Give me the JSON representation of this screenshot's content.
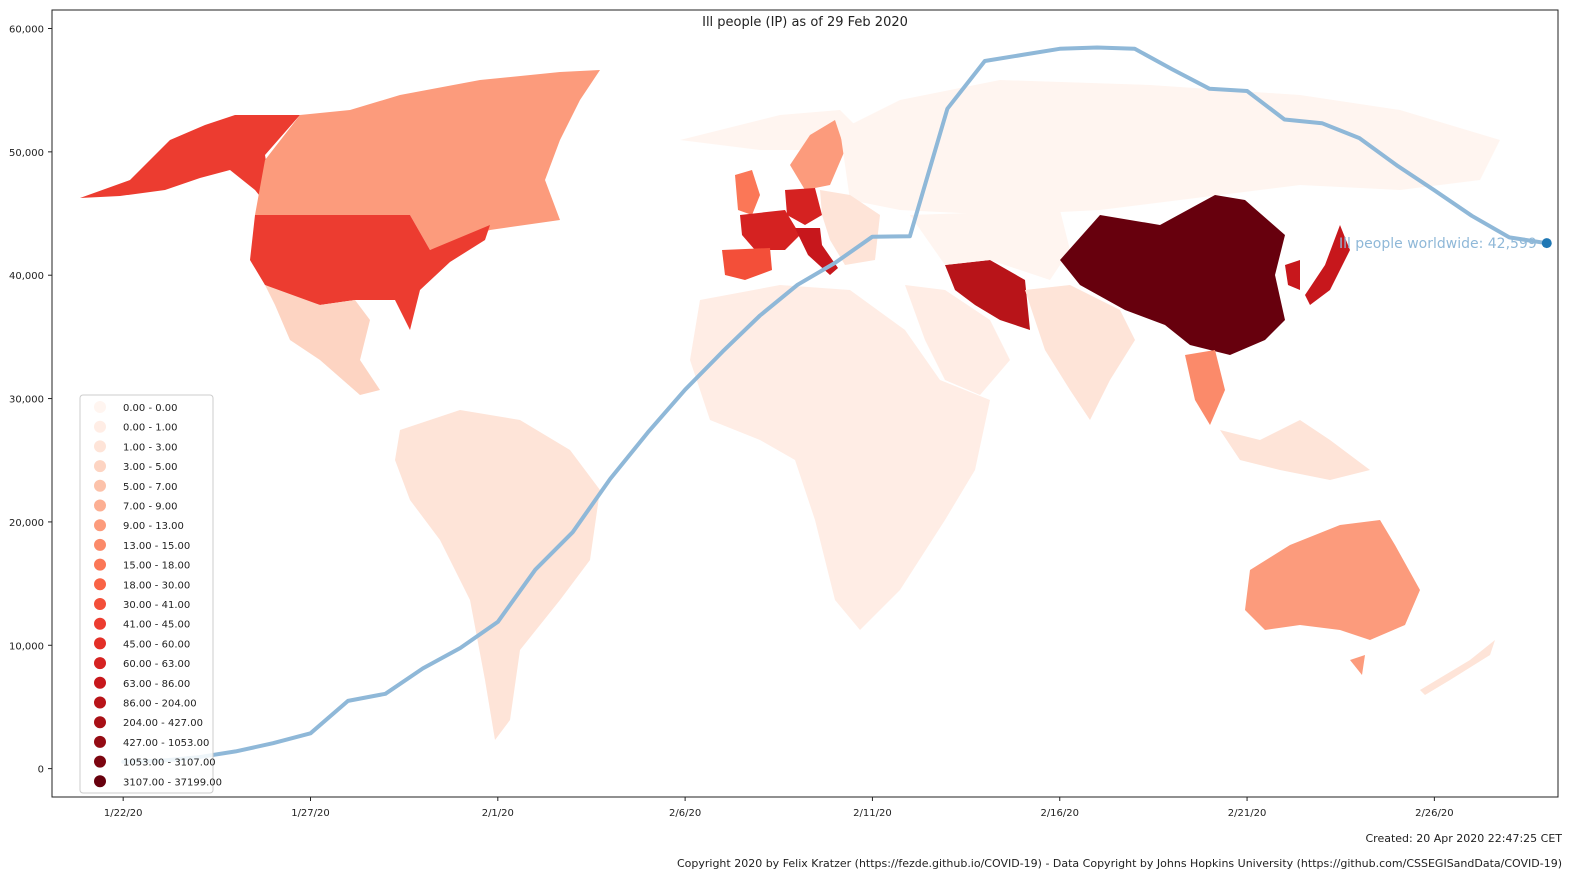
{
  "chart_data": {
    "type": "line",
    "title": "Ill people (IP) as of 29 Feb 2020",
    "xlabel": "",
    "ylabel": "",
    "ylim": [
      -2300,
      61500
    ],
    "xlim": [
      -1.9,
      38.3
    ],
    "x_ticks": [
      {
        "day": 0,
        "label": "1/22/20"
      },
      {
        "day": 5,
        "label": "1/27/20"
      },
      {
        "day": 10,
        "label": "2/1/20"
      },
      {
        "day": 15,
        "label": "2/6/20"
      },
      {
        "day": 20,
        "label": "2/11/20"
      },
      {
        "day": 25,
        "label": "2/16/20"
      },
      {
        "day": 30,
        "label": "2/21/20"
      },
      {
        "day": 35,
        "label": "2/26/20"
      }
    ],
    "y_ticks": [
      {
        "value": 0,
        "label": "0"
      },
      {
        "value": 10000,
        "label": "10,000"
      },
      {
        "value": 20000,
        "label": "20,000"
      },
      {
        "value": 30000,
        "label": "30,000"
      },
      {
        "value": 40000,
        "label": "40,000"
      },
      {
        "value": 50000,
        "label": "50,000"
      },
      {
        "value": 60000,
        "label": "60,000"
      }
    ],
    "series": [
      {
        "color": "#8fb8d8",
        "values": [
          548,
          640,
          918,
          1399,
          2062,
          2863,
          5494,
          6070,
          8124,
          9783,
          11891,
          16125,
          19163,
          23485,
          27237,
          30718,
          33811,
          36736,
          39219,
          40996,
          43124,
          43166,
          53500,
          57367,
          57861,
          58358,
          58460,
          58357,
          56702,
          55110,
          54934,
          52624,
          52320,
          51114,
          48903,
          46883,
          44819,
          43068,
          42599
        ]
      }
    ],
    "end_marker": {
      "day": 38,
      "value": 42599,
      "color": "#1f77b4"
    },
    "annotation": "Ill people worldwide: 42,599",
    "grid": false,
    "legend_position": "lower-left",
    "legend": {
      "entries": [
        {
          "label": "0.00 - 0.00",
          "color": "#fff5f0"
        },
        {
          "label": "0.00 - 1.00",
          "color": "#ffede5"
        },
        {
          "label": "1.00 - 3.00",
          "color": "#fee4d8"
        },
        {
          "label": "3.00 - 5.00",
          "color": "#fdd4c2"
        },
        {
          "label": "5.00 - 7.00",
          "color": "#fcc2aa"
        },
        {
          "label": "7.00 - 9.00",
          "color": "#fcaf93"
        },
        {
          "label": "9.00 - 13.00",
          "color": "#fc9b7c"
        },
        {
          "label": "13.00 - 15.00",
          "color": "#fb8a6a"
        },
        {
          "label": "15.00 - 18.00",
          "color": "#fb7757"
        },
        {
          "label": "18.00 - 30.00",
          "color": "#f96346"
        },
        {
          "label": "30.00 - 41.00",
          "color": "#f34f39"
        },
        {
          "label": "41.00 - 45.00",
          "color": "#ec3c30"
        },
        {
          "label": "45.00 - 60.00",
          "color": "#e32f27"
        },
        {
          "label": "60.00 - 63.00",
          "color": "#d52221"
        },
        {
          "label": "63.00 - 86.00",
          "color": "#c7171c"
        },
        {
          "label": "86.00 - 204.00",
          "color": "#b81419"
        },
        {
          "label": "204.00 - 427.00",
          "color": "#a81016"
        },
        {
          "label": "427.00 - 1053.00",
          "color": "#940b13"
        },
        {
          "label": "1053.00 - 3107.00",
          "color": "#7c0510"
        },
        {
          "label": "3107.00 - 37199.00",
          "color": "#67000d"
        }
      ]
    }
  },
  "map_colors": {
    "china": "#67000d",
    "iran": "#b81419",
    "italy": "#c7171c",
    "korea_japan": "#c7171c",
    "france_germany": "#d52221",
    "usa": "#ec3c30",
    "alaska": "#ec3c30",
    "spain": "#f34f39",
    "canada": "#fc9b7c",
    "australia": "#fc9b7c",
    "thailand": "#fb8a6a",
    "uk": "#fb7757",
    "low": "#fee4d8",
    "lowest": "#ffede5"
  },
  "footer": {
    "created": "Created: 20 Apr 2020 22:47:25 CET",
    "copyright": "Copyright 2020 by Felix Kratzer (https://fezde.github.io/COVID-19) - Data Copyright by Johns Hopkins University (https://github.com/CSSEGISandData/COVID-19)"
  }
}
